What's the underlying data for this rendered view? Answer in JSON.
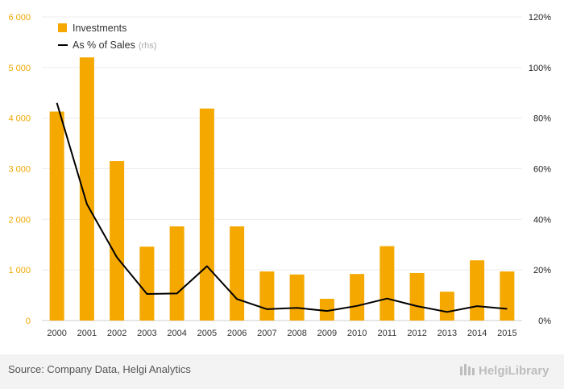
{
  "chart_data": {
    "type": "bar",
    "categories": [
      "2000",
      "2001",
      "2002",
      "2003",
      "2004",
      "2005",
      "2006",
      "2007",
      "2008",
      "2009",
      "2010",
      "2011",
      "2012",
      "2013",
      "2014",
      "2015"
    ],
    "series": [
      {
        "name": "Investments",
        "type": "bar",
        "axis": "left",
        "color": "#f5a800",
        "values": [
          4130,
          5200,
          3150,
          1460,
          1860,
          4190,
          1860,
          970,
          910,
          430,
          920,
          1470,
          940,
          570,
          1190,
          970
        ]
      },
      {
        "name": "As % of Sales",
        "legend_suffix": "(rhs)",
        "type": "line",
        "axis": "right",
        "color": "#000000",
        "values": [
          86,
          46,
          25,
          10.5,
          10.7,
          21.5,
          8.5,
          4.5,
          5,
          3.8,
          5.8,
          8.7,
          5.7,
          3.4,
          5.7,
          4.6
        ]
      }
    ],
    "left_axis": {
      "range": [
        0,
        6000
      ],
      "ticks": [
        0,
        1000,
        2000,
        3000,
        4000,
        5000,
        6000
      ],
      "tick_labels": [
        "0",
        "1 000",
        "2 000",
        "3 000",
        "4 000",
        "5 000",
        "6 000"
      ],
      "color": "#f0a800"
    },
    "right_axis": {
      "range": [
        0,
        120
      ],
      "ticks": [
        0,
        20,
        40,
        60,
        80,
        100,
        120
      ],
      "tick_labels": [
        "0%",
        "20%",
        "40%",
        "60%",
        "80%",
        "100%",
        "120%"
      ],
      "color": "#222222"
    },
    "title": "",
    "xlabel": "",
    "ylabel": "",
    "grid": true,
    "legend_position": "top-left"
  },
  "footer": {
    "source": "Source: Company Data, Helgi Analytics",
    "brand": "HelgiLibrary"
  }
}
